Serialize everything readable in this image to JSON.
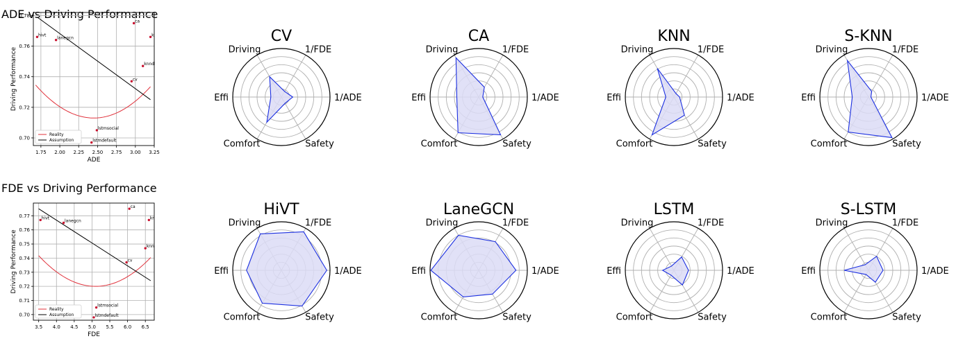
{
  "colors": {
    "reality": "#e0303a",
    "assumption": "#000000",
    "radar": "#1a2ee0",
    "radar_fill": "#dcdcf6",
    "point": "#c8102e",
    "grid": "#b0b0b0"
  },
  "chart_data": [
    {
      "type": "scatter",
      "title": "ADE vs Driving Performance",
      "xlabel": "ADE",
      "ylabel": "Driving Performance",
      "xlim": [
        1.65,
        3.25
      ],
      "ylim": [
        0.695,
        0.782
      ],
      "xticks": [
        1.75,
        2.0,
        2.25,
        2.5,
        2.75,
        3.0,
        3.25
      ],
      "xtick_labels": [
        "1.75",
        "2.00",
        "2.25",
        "2.50",
        "2.75",
        "3.00",
        "3.25"
      ],
      "yticks": [
        0.7,
        0.72,
        0.74,
        0.76,
        0.78
      ],
      "ytick_labels": [
        "0.70",
        "0.72",
        "0.74",
        "0.76",
        "0.78"
      ],
      "grid": true,
      "legend": "lower-left",
      "points": [
        {
          "label": "hivt",
          "x": 1.7,
          "y": 0.766
        },
        {
          "label": "lanegcn",
          "x": 1.95,
          "y": 0.764
        },
        {
          "label": "ca",
          "x": 2.98,
          "y": 0.775
        },
        {
          "label": "knnsocial",
          "x": 3.2,
          "y": 0.766
        },
        {
          "label": "knndefault",
          "x": 3.1,
          "y": 0.747
        },
        {
          "label": "cv",
          "x": 2.95,
          "y": 0.737
        },
        {
          "label": "lstmsocial",
          "x": 2.49,
          "y": 0.705
        },
        {
          "label": "lstmdefault",
          "x": 2.42,
          "y": 0.697
        }
      ],
      "series": [
        {
          "name": "Reality",
          "kind": "quadratic",
          "vertex_x": 2.45,
          "vertex_y": 0.713,
          "a": 0.0364,
          "x_range": [
            1.68,
            3.2
          ]
        },
        {
          "name": "Assumption",
          "kind": "linear",
          "x": [
            1.7,
            3.2
          ],
          "y": [
            0.779,
            0.725
          ]
        }
      ]
    },
    {
      "type": "scatter",
      "title": "FDE vs Driving Performance",
      "xlabel": "FDE",
      "ylabel": "Driving Performance",
      "xlim": [
        3.35,
        6.75
      ],
      "ylim": [
        0.696,
        0.779
      ],
      "xticks": [
        3.5,
        4.0,
        4.5,
        5.0,
        5.5,
        6.0,
        6.5
      ],
      "xtick_labels": [
        "3.5",
        "4.0",
        "4.5",
        "5.0",
        "5.5",
        "6.0",
        "6.5"
      ],
      "yticks": [
        0.7,
        0.71,
        0.72,
        0.73,
        0.74,
        0.75,
        0.76,
        0.77
      ],
      "ytick_labels": [
        "0.70",
        "0.71",
        "0.72",
        "0.73",
        "0.74",
        "0.75",
        "0.76",
        "0.77"
      ],
      "grid": true,
      "legend": "lower-left",
      "points": [
        {
          "label": "hivt",
          "x": 3.55,
          "y": 0.767
        },
        {
          "label": "lanegcn",
          "x": 4.2,
          "y": 0.765
        },
        {
          "label": "ca",
          "x": 6.05,
          "y": 0.775
        },
        {
          "label": "knnsocial",
          "x": 6.6,
          "y": 0.767
        },
        {
          "label": "knndefault",
          "x": 6.5,
          "y": 0.747
        },
        {
          "label": "cv",
          "x": 5.97,
          "y": 0.737
        },
        {
          "label": "lstmsocial",
          "x": 5.12,
          "y": 0.705
        },
        {
          "label": "lstmdefault",
          "x": 5.05,
          "y": 0.698
        }
      ],
      "series": [
        {
          "name": "Reality",
          "kind": "quadratic",
          "vertex_x": 5.1,
          "vertex_y": 0.72,
          "a": 0.0085,
          "x_range": [
            3.5,
            6.65
          ]
        },
        {
          "name": "Assumption",
          "kind": "linear",
          "x": [
            3.5,
            6.65
          ],
          "y": [
            0.775,
            0.724
          ]
        }
      ]
    },
    {
      "type": "radar",
      "title": "CV",
      "axes": [
        "1/ADE",
        "1/FDE",
        "Driving",
        "Effi",
        "Comfort",
        "Safety"
      ],
      "rmax": 6,
      "values": [
        1.4,
        0.8,
        2.9,
        1.3,
        3.6,
        0.9
      ]
    },
    {
      "type": "radar",
      "title": "CA",
      "axes": [
        "1/ADE",
        "1/FDE",
        "Driving",
        "Effi",
        "Comfort",
        "Safety"
      ],
      "rmax": 6,
      "values": [
        0.5,
        1.4,
        5.6,
        2.7,
        5.1,
        5.4
      ]
    },
    {
      "type": "radar",
      "title": "KNN",
      "axes": [
        "1/ADE",
        "1/FDE",
        "Driving",
        "Effi",
        "Comfort",
        "Safety"
      ],
      "rmax": 6,
      "values": [
        0.7,
        0.5,
        4.1,
        1.0,
        5.4,
        2.6
      ]
    },
    {
      "type": "radar",
      "title": "S-KNN",
      "axes": [
        "1/ADE",
        "1/FDE",
        "Driving",
        "Effi",
        "Comfort",
        "Safety"
      ],
      "rmax": 6,
      "values": [
        0.3,
        0.8,
        5.2,
        2.0,
        5.0,
        5.8
      ]
    },
    {
      "type": "radar",
      "title": "HiVT",
      "axes": [
        "1/ADE",
        "1/FDE",
        "Driving",
        "Effi",
        "Comfort",
        "Safety"
      ],
      "rmax": 6,
      "values": [
        5.6,
        5.5,
        5.2,
        4.3,
        4.7,
        5.1
      ]
    },
    {
      "type": "radar",
      "title": "LaneGCN",
      "axes": [
        "1/ADE",
        "1/FDE",
        "Driving",
        "Effi",
        "Comfort",
        "Safety"
      ],
      "rmax": 6,
      "values": [
        4.6,
        4.1,
        5.0,
        5.9,
        3.8,
        3.4
      ]
    },
    {
      "type": "radar",
      "title": "LSTM",
      "axes": [
        "1/ADE",
        "1/FDE",
        "Driving",
        "Effi",
        "Comfort",
        "Safety"
      ],
      "rmax": 6,
      "values": [
        1.8,
        1.9,
        0.6,
        1.4,
        0.7,
        2.1
      ]
    },
    {
      "type": "radar",
      "title": "S-LSTM",
      "axes": [
        "1/ADE",
        "1/FDE",
        "Driving",
        "Effi",
        "Comfort",
        "Safety"
      ],
      "rmax": 6,
      "values": [
        1.8,
        2.0,
        0.8,
        3.0,
        0.6,
        1.7
      ]
    }
  ]
}
